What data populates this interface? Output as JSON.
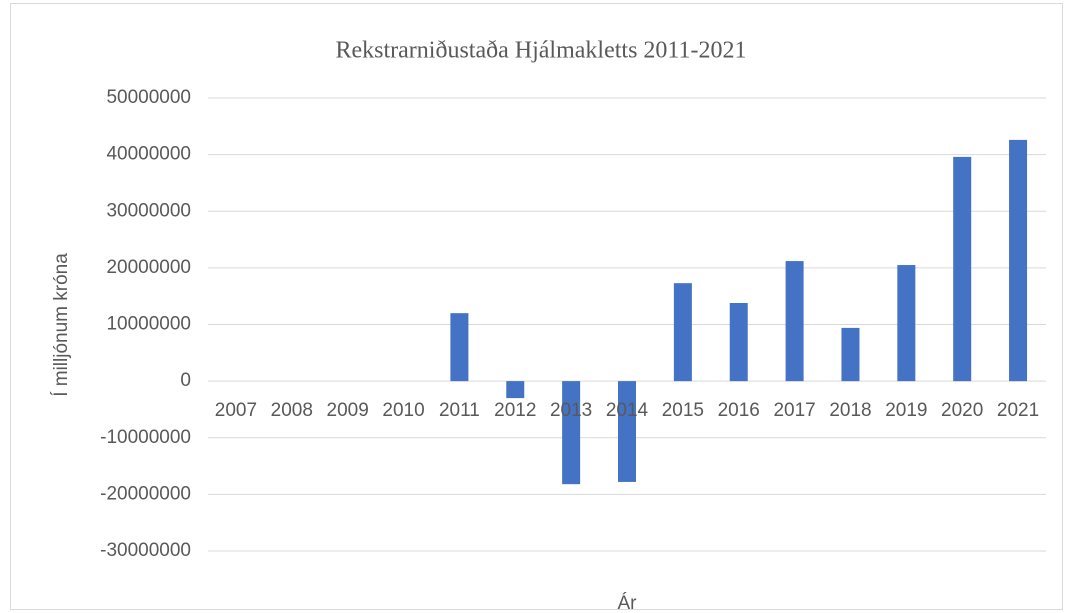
{
  "chart_data": {
    "type": "bar",
    "title": "Rekstrarniðustaða Hjálmakletts 2011-2021",
    "x_label": "Ár",
    "y_label": "Í milljónum króna",
    "categories": [
      "2007",
      "2008",
      "2009",
      "2010",
      "2011",
      "2012",
      "2013",
      "2014",
      "2015",
      "2016",
      "2017",
      "2018",
      "2019",
      "2020",
      "2021"
    ],
    "values": [
      null,
      null,
      null,
      null,
      12000000,
      -3000000,
      -18200000,
      -17800000,
      17300000,
      13800000,
      21200000,
      9400000,
      20500000,
      39600000,
      42600000
    ],
    "color": "#4472c4",
    "ylim": [
      -30000000,
      50000000
    ],
    "yticks": [
      -30000000,
      -20000000,
      -10000000,
      0,
      10000000,
      20000000,
      30000000,
      40000000,
      50000000
    ],
    "grid": true
  }
}
